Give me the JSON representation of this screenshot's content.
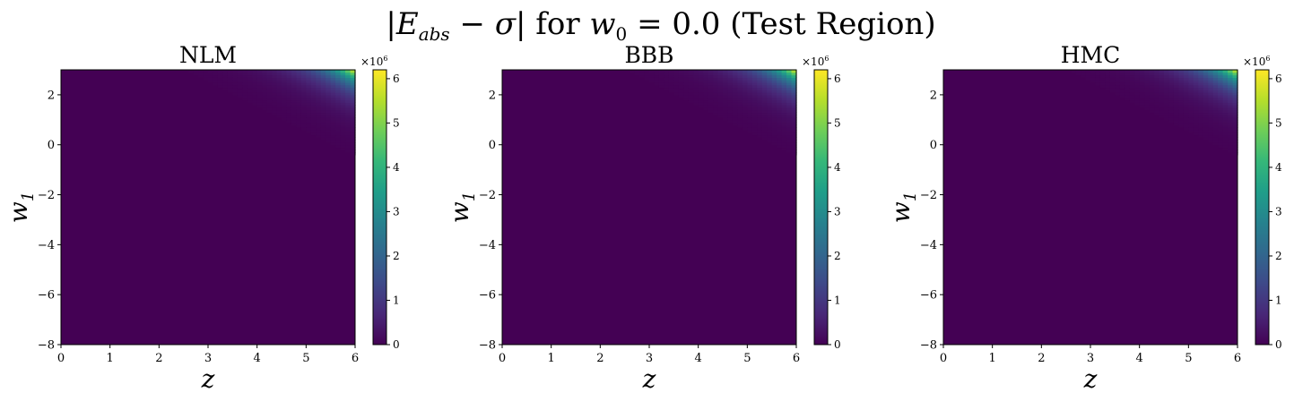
{
  "figure": {
    "title_parts": {
      "lhs_open": "|",
      "E": "E",
      "E_sub": "abs",
      "minus": " − ",
      "sigma": "σ",
      "lhs_close": "|",
      "for": " for ",
      "w": "w",
      "w_sub": "0",
      "rest": " = 0.0 (Test Region)"
    }
  },
  "colors": {
    "viridis": [
      "#440154",
      "#482878",
      "#3e4989",
      "#31688e",
      "#26828e",
      "#1f9e89",
      "#35b779",
      "#6ece58",
      "#b5de2b",
      "#fde725"
    ],
    "background": "#440154"
  },
  "chart_data": [
    {
      "type": "heatmap",
      "title": "NLM",
      "xlabel": "z",
      "ylabel_main": "w",
      "ylabel_sub": "1",
      "xlim": [
        0,
        6
      ],
      "ylim": [
        -8,
        3
      ],
      "xticks": [
        0,
        1,
        2,
        3,
        4,
        5,
        6
      ],
      "yticks": [
        -8,
        -6,
        -4,
        -2,
        0,
        2
      ],
      "xtick_labels": [
        "0",
        "1",
        "2",
        "3",
        "4",
        "5",
        "6"
      ],
      "ytick_labels": [
        "−8",
        "−6",
        "−4",
        "−2",
        "0",
        "2"
      ],
      "colorbar": {
        "range": [
          0,
          6.2
        ],
        "ticks": [
          0,
          1,
          2,
          3,
          4,
          5,
          6
        ],
        "tick_labels": [
          "0",
          "1",
          "2",
          "3",
          "4",
          "5",
          "6"
        ],
        "multiplier_base": "×10",
        "multiplier_exp": "6",
        "cmap": "viridis"
      },
      "surface": {
        "peak_value": 6.2,
        "peak_at": [
          6,
          3
        ],
        "approx_zero_elsewhere": true
      }
    },
    {
      "type": "heatmap",
      "title": "BBB",
      "xlabel": "z",
      "ylabel_main": "w",
      "ylabel_sub": "1",
      "xlim": [
        0,
        6
      ],
      "ylim": [
        -8,
        3
      ],
      "xticks": [
        0,
        1,
        2,
        3,
        4,
        5,
        6
      ],
      "yticks": [
        -8,
        -6,
        -4,
        -2,
        0,
        2
      ],
      "xtick_labels": [
        "0",
        "1",
        "2",
        "3",
        "4",
        "5",
        "6"
      ],
      "ytick_labels": [
        "−8",
        "−6",
        "−4",
        "−2",
        "0",
        "2"
      ],
      "colorbar": {
        "range": [
          0,
          6.2
        ],
        "ticks": [
          0,
          1,
          2,
          3,
          4,
          5,
          6
        ],
        "tick_labels": [
          "0",
          "1",
          "2",
          "3",
          "4",
          "5",
          "6"
        ],
        "multiplier_base": "×10",
        "multiplier_exp": "6",
        "cmap": "viridis"
      },
      "surface": {
        "peak_value": 6.2,
        "peak_at": [
          6,
          3
        ],
        "approx_zero_elsewhere": true
      }
    },
    {
      "type": "heatmap",
      "title": "HMC",
      "xlabel": "z",
      "ylabel_main": "w",
      "ylabel_sub": "1",
      "xlim": [
        0,
        6
      ],
      "ylim": [
        -8,
        3
      ],
      "xticks": [
        0,
        1,
        2,
        3,
        4,
        5,
        6
      ],
      "yticks": [
        -8,
        -6,
        -4,
        -2,
        0,
        2
      ],
      "xtick_labels": [
        "0",
        "1",
        "2",
        "3",
        "4",
        "5",
        "6"
      ],
      "ytick_labels": [
        "−8",
        "−6",
        "−4",
        "−2",
        "0",
        "2"
      ],
      "colorbar": {
        "range": [
          0,
          6.2
        ],
        "ticks": [
          0,
          1,
          2,
          3,
          4,
          5,
          6
        ],
        "tick_labels": [
          "0",
          "1",
          "2",
          "3",
          "4",
          "5",
          "6"
        ],
        "multiplier_base": "×10",
        "multiplier_exp": "6",
        "cmap": "viridis"
      },
      "surface": {
        "peak_value": 6.2,
        "peak_at": [
          6,
          3
        ],
        "approx_zero_elsewhere": true
      }
    }
  ]
}
